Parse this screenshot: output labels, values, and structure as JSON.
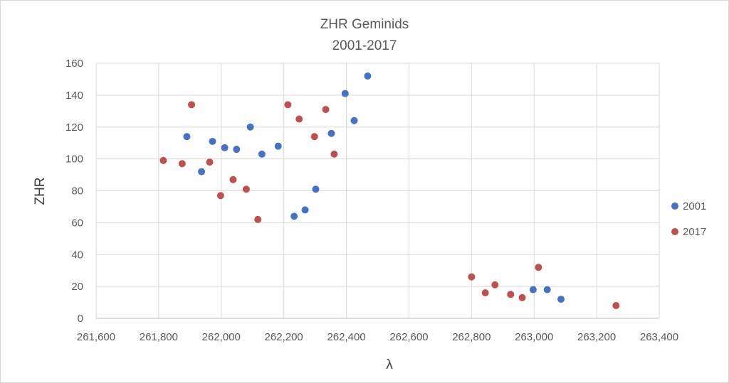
{
  "chart_data": {
    "type": "scatter",
    "title": [
      "ZHR  Geminids",
      "2001-2017"
    ],
    "xlabel": "λ",
    "ylabel": "ZHR",
    "xlim": [
      261600,
      263400
    ],
    "ylim": [
      0,
      160
    ],
    "xticks": [
      261600,
      261800,
      262000,
      262200,
      262400,
      262600,
      262800,
      263000,
      263200,
      263400
    ],
    "xtick_labels": [
      "261,600",
      "261,800",
      "262,000",
      "262,200",
      "262,400",
      "262,600",
      "262,800",
      "263,000",
      "263,200",
      "263,400"
    ],
    "yticks": [
      0,
      20,
      40,
      60,
      80,
      100,
      120,
      140,
      160
    ],
    "ytick_labels": [
      "0",
      "20",
      "40",
      "60",
      "80",
      "100",
      "120",
      "140",
      "160"
    ],
    "grid": true,
    "legend_position": "right",
    "series": [
      {
        "name": "2001",
        "color": "#4472c4",
        "points": [
          [
            261890,
            114
          ],
          [
            261937,
            92
          ],
          [
            261972,
            111
          ],
          [
            262011,
            107
          ],
          [
            262049,
            106
          ],
          [
            262093,
            120
          ],
          [
            262130,
            103
          ],
          [
            262182,
            108
          ],
          [
            262233,
            64
          ],
          [
            262268,
            68
          ],
          [
            262302,
            81
          ],
          [
            262352,
            116
          ],
          [
            262396,
            141
          ],
          [
            262425,
            124
          ],
          [
            262468,
            152
          ],
          [
            262997,
            18
          ],
          [
            263042,
            18
          ],
          [
            263086,
            12
          ]
        ]
      },
      {
        "name": "2017",
        "color": "#c0504d",
        "points": [
          [
            261815,
            99
          ],
          [
            261875,
            97
          ],
          [
            261905,
            134
          ],
          [
            261963,
            98
          ],
          [
            261998,
            77
          ],
          [
            262038,
            87
          ],
          [
            262080,
            81
          ],
          [
            262117,
            62
          ],
          [
            262213,
            134
          ],
          [
            262249,
            125
          ],
          [
            262298,
            114
          ],
          [
            262334,
            131
          ],
          [
            262361,
            103
          ],
          [
            262800,
            26
          ],
          [
            262844,
            16
          ],
          [
            262875,
            21
          ],
          [
            262925,
            15
          ],
          [
            262962,
            13
          ],
          [
            263014,
            32
          ],
          [
            263262,
            8
          ]
        ]
      }
    ]
  }
}
